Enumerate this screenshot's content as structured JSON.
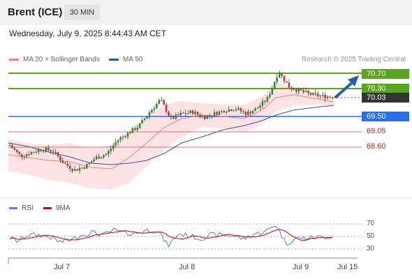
{
  "header": {
    "instrument": "Brent (ICE)",
    "timeframe": "30 MIN",
    "datetime": "Wednesday, July 9, 2025 8:44:43 AM CET"
  },
  "legend": {
    "bollinger": {
      "label": "MA 20 + Bollinger Bands",
      "color": "#f08080"
    },
    "ma50": {
      "label": "MA 50",
      "color": "#335599"
    },
    "credit": "Research © 2025 Trading Central"
  },
  "levels": {
    "r2": {
      "value": "70.70",
      "color": "#5aa51e"
    },
    "r1": {
      "value": "70.30",
      "color": "#5aa51e"
    },
    "last": {
      "value": "70.03",
      "color": "#333333"
    },
    "pivot": {
      "value": "69.50",
      "color": "#2a6ee8"
    },
    "s1": {
      "value": "69.05",
      "color": "#cc2222"
    },
    "s2": {
      "value": "68.60",
      "color": "#cc2222"
    }
  },
  "rsi": {
    "rsi_label": "RSI",
    "rsi_color": "#5b7fe0",
    "ma_label": "9MA",
    "ma_color": "#dd0000",
    "ticks": [
      "70",
      "50",
      "30"
    ]
  },
  "x_axis": {
    "dates": [
      "Jul 7",
      "Jul 8",
      "Jul 9",
      "Jul 15"
    ]
  },
  "chart_data": {
    "type": "candlestick",
    "price_levels": [
      70.7,
      70.3,
      70.03,
      69.5,
      69.05,
      68.6
    ],
    "rsi_levels": [
      70,
      50,
      30
    ],
    "x_ticks": [
      "Jul 7",
      "Jul 8",
      "Jul 9",
      "Jul 15"
    ],
    "price_path": [
      68.65,
      68.35,
      68.45,
      68.55,
      68.5,
      68.15,
      67.95,
      68.05,
      68.3,
      68.4,
      68.8,
      69.0,
      69.2,
      69.6,
      69.95,
      69.4,
      69.55,
      69.6,
      69.45,
      69.55,
      69.65,
      69.7,
      69.55,
      69.7,
      70.0,
      70.75,
      70.3,
      70.2,
      70.1,
      70.05,
      70.03
    ],
    "forecast": "up toward 70.70"
  }
}
